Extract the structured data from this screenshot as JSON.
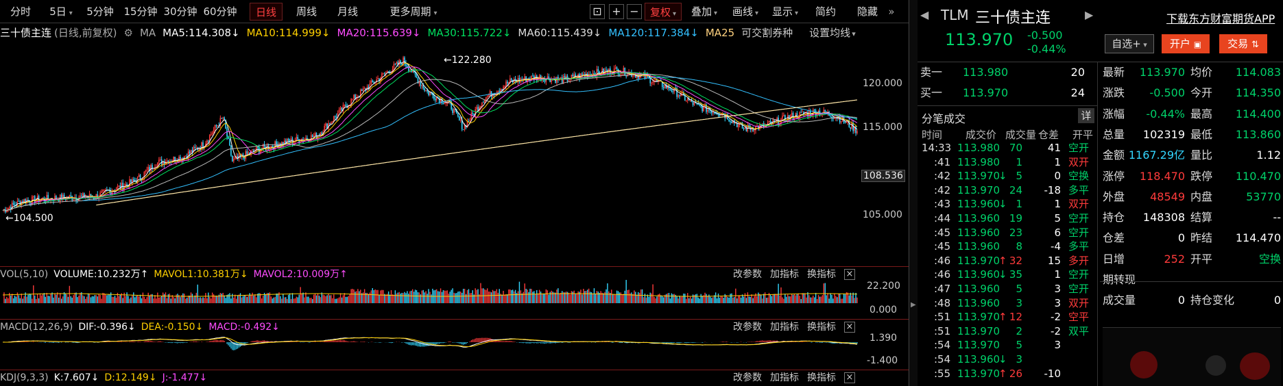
{
  "toolbar": {
    "left_items": [
      "分时",
      "5日",
      "5分钟",
      "15分钟",
      "30分钟",
      "60分钟",
      "日线",
      "周线",
      "月线",
      "更多周期"
    ],
    "active": "日线",
    "right_items": [
      "复权",
      "叠加",
      "画线",
      "显示",
      "简约",
      "隐藏"
    ],
    "icons": [
      "lock-icon",
      "plus-icon",
      "minus-icon"
    ]
  },
  "ma_legend": {
    "name": "三十债主连",
    "mode": "(日线,前复权)",
    "label": "MA",
    "items": [
      {
        "text": "MA5:114.308↓",
        "color": "#ffffff"
      },
      {
        "text": "MA10:114.999↓",
        "color": "#ffd000"
      },
      {
        "text": "MA20:115.639↓",
        "color": "#ff4dff"
      },
      {
        "text": "MA30:115.722↓",
        "color": "#00e060"
      },
      {
        "text": "MA60:115.439↓",
        "color": "#dddddd"
      },
      {
        "text": "MA120:117.384↓",
        "color": "#33c0ff"
      },
      {
        "text": "MA25",
        "color": "#ffd27f"
      }
    ],
    "extra": "可交割券种",
    "settings": "设置均线"
  },
  "main_chart": {
    "y_ticks": [
      "120.000",
      "115.000",
      "105.000"
    ],
    "price_label": "108.536",
    "high_label": "122.280",
    "low_label": "104.500"
  },
  "vol": {
    "legend": [
      "VOL(5,10)",
      "VOLUME:10.232万↑",
      "MAVOL1:10.381万↓",
      "MAVOL2:10.009万↑"
    ],
    "colors": [
      "#bbbbbb",
      "#ffffff",
      "#ffd000",
      "#ff4dff"
    ],
    "y_ticks": [
      "22.200",
      "0.000"
    ]
  },
  "macd": {
    "legend": [
      "MACD(12,26,9)",
      "DIF:-0.396↓",
      "DEA:-0.150↓",
      "MACD:-0.492↓"
    ],
    "colors": [
      "#bbbbbb",
      "#ffffff",
      "#ffd000",
      "#ff4dff"
    ],
    "y_ticks": [
      "1.390",
      "-1.400"
    ]
  },
  "kdj": {
    "legend": [
      "KDJ(9,3,3)",
      "K:7.607↓",
      "D:12.149↓",
      "J:-1.477↓"
    ],
    "colors": [
      "#bbbbbb",
      "#ffffff",
      "#ffd000",
      "#ff4dff"
    ]
  },
  "panel_controls": [
    "改参数",
    "加指标",
    "换指标"
  ],
  "right": {
    "code": "TLM",
    "name": "三十债主连",
    "price": "113.970",
    "change": "-0.500",
    "pct": "-0.44%",
    "download": "下载东方财富期货APP",
    "btn_watch": "自选+",
    "btn_open": "开户",
    "btn_trade": "交易",
    "ask": {
      "label": "卖一",
      "price": "113.980",
      "vol": "20"
    },
    "bid": {
      "label": "买一",
      "price": "113.970",
      "vol": "24"
    },
    "tick_title": "分笔成交",
    "tick_detail": "详",
    "tick_headers": [
      "时间",
      "成交价",
      "成交量",
      "仓差",
      "开平"
    ],
    "ticks": [
      {
        "t": "14:33",
        "p": "113.980",
        "a": "",
        "v": "70",
        "c": "41",
        "o": "空开",
        "pc": "down",
        "oc": "down"
      },
      {
        "t": ":41",
        "p": "113.980",
        "a": "",
        "v": "1",
        "c": "1",
        "o": "双开",
        "pc": "down",
        "oc": "up"
      },
      {
        "t": ":42",
        "p": "113.970",
        "a": "↓",
        "v": "5",
        "c": "0",
        "o": "空换",
        "pc": "down",
        "oc": "down"
      },
      {
        "t": ":42",
        "p": "113.970",
        "a": "",
        "v": "24",
        "c": "-18",
        "o": "多平",
        "pc": "down",
        "oc": "down"
      },
      {
        "t": ":43",
        "p": "113.960",
        "a": "↓",
        "v": "1",
        "c": "1",
        "o": "双开",
        "pc": "down",
        "oc": "up"
      },
      {
        "t": ":44",
        "p": "113.960",
        "a": "",
        "v": "19",
        "c": "5",
        "o": "空开",
        "pc": "down",
        "oc": "down"
      },
      {
        "t": ":45",
        "p": "113.960",
        "a": "",
        "v": "23",
        "c": "6",
        "o": "空开",
        "pc": "down",
        "oc": "down"
      },
      {
        "t": ":45",
        "p": "113.960",
        "a": "",
        "v": "8",
        "c": "-4",
        "o": "多平",
        "pc": "down",
        "oc": "down"
      },
      {
        "t": ":46",
        "p": "113.970",
        "a": "↑",
        "v": "32",
        "c": "15",
        "o": "多开",
        "pc": "down",
        "oc": "up"
      },
      {
        "t": ":46",
        "p": "113.960",
        "a": "↓",
        "v": "35",
        "c": "1",
        "o": "空开",
        "pc": "down",
        "oc": "down"
      },
      {
        "t": ":47",
        "p": "113.960",
        "a": "",
        "v": "5",
        "c": "3",
        "o": "空开",
        "pc": "down",
        "oc": "down"
      },
      {
        "t": ":48",
        "p": "113.960",
        "a": "",
        "v": "3",
        "c": "3",
        "o": "双开",
        "pc": "down",
        "oc": "up"
      },
      {
        "t": ":51",
        "p": "113.970",
        "a": "↑",
        "v": "12",
        "c": "-2",
        "o": "空平",
        "pc": "down",
        "oc": "up"
      },
      {
        "t": ":51",
        "p": "113.970",
        "a": "",
        "v": "2",
        "c": "-2",
        "o": "双平",
        "pc": "down",
        "oc": "down"
      },
      {
        "t": ":54",
        "p": "113.970",
        "a": "",
        "v": "5",
        "c": "3",
        "o": "",
        "pc": "down",
        "oc": "down"
      },
      {
        "t": ":54",
        "p": "113.960",
        "a": "↓",
        "v": "3",
        "c": "",
        "o": "",
        "pc": "down",
        "oc": "down"
      },
      {
        "t": ":55",
        "p": "113.970",
        "a": "↑",
        "v": "26",
        "c": "-10",
        "o": "",
        "pc": "down",
        "oc": "up"
      }
    ],
    "quote": [
      {
        "l1": "最新",
        "v1": "113.970",
        "c1": "down",
        "l2": "均价",
        "v2": "114.083",
        "c2": "down"
      },
      {
        "l1": "涨跌",
        "v1": "-0.500",
        "c1": "down",
        "l2": "今开",
        "v2": "114.350",
        "c2": "down"
      },
      {
        "l1": "涨幅",
        "v1": "-0.44%",
        "c1": "down",
        "l2": "最高",
        "v2": "114.400",
        "c2": "down"
      },
      {
        "l1": "总量",
        "v1": "102319",
        "c1": "",
        "l2": "最低",
        "v2": "113.860",
        "c2": "down"
      },
      {
        "l1": "金额",
        "v1": "1167.29亿",
        "c1": "cyan",
        "l2": "量比",
        "v2": "1.12",
        "c2": ""
      },
      {
        "l1": "涨停",
        "v1": "118.470",
        "c1": "up",
        "l2": "跌停",
        "v2": "110.470",
        "c2": "down"
      },
      {
        "l1": "外盘",
        "v1": "48549",
        "c1": "up",
        "l2": "内盘",
        "v2": "53770",
        "c2": "down"
      },
      {
        "l1": "持仓",
        "v1": "148308",
        "c1": "",
        "l2": "结算",
        "v2": "--",
        "c2": ""
      },
      {
        "l1": "仓差",
        "v1": "0",
        "c1": "",
        "l2": "昨结",
        "v2": "114.470",
        "c2": ""
      },
      {
        "l1": "日增",
        "v1": "252",
        "c1": "up",
        "l2": "开平",
        "v2": "空换",
        "c2": "down"
      },
      {
        "l1": "期转现",
        "v1": "",
        "c1": "",
        "l2": "",
        "v2": "",
        "c2": ""
      },
      {
        "l1": "成交量",
        "v1": "0",
        "c1": "",
        "l2": "持仓变化",
        "v2": "0",
        "c2": ""
      }
    ]
  }
}
